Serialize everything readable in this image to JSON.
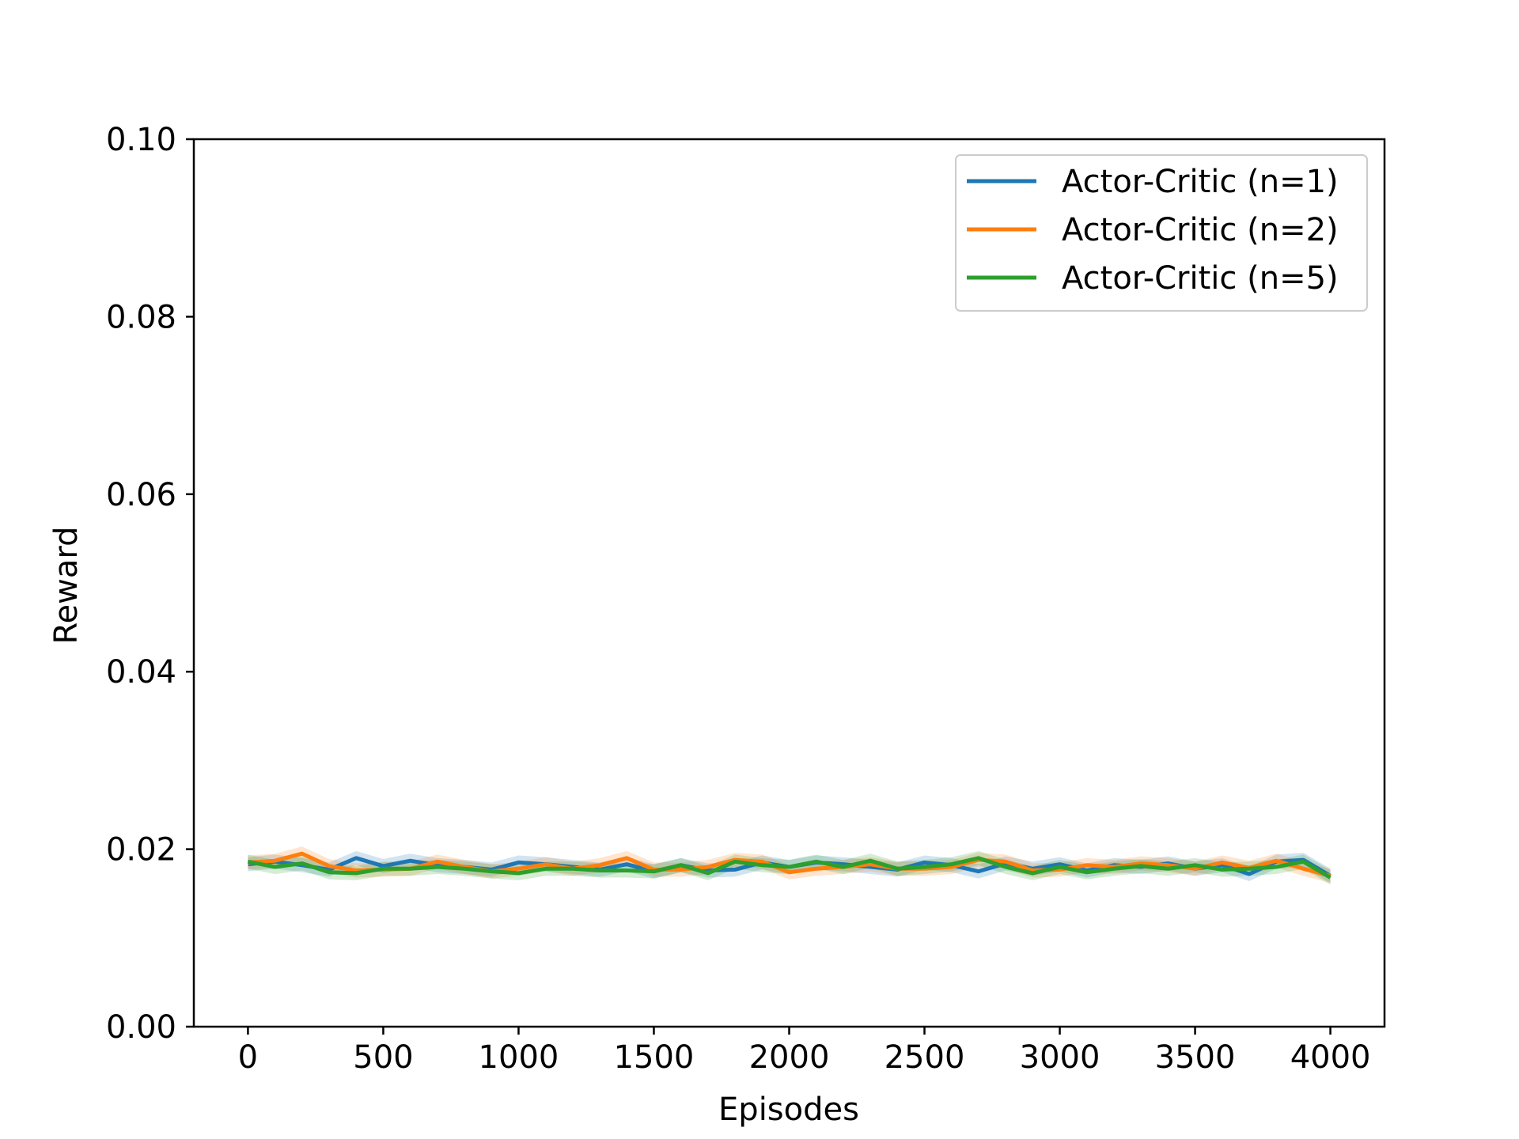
{
  "chart_data": {
    "type": "line",
    "title": "",
    "xlabel": "Episodes",
    "ylabel": "Reward",
    "xlim": [
      -200,
      4200
    ],
    "ylim": [
      0.0,
      0.1
    ],
    "xticks": [
      0,
      500,
      1000,
      1500,
      2000,
      2500,
      3000,
      3500,
      4000
    ],
    "xtick_labels": [
      "0",
      "500",
      "1000",
      "1500",
      "2000",
      "2500",
      "3000",
      "3500",
      "4000"
    ],
    "yticks": [
      0.0,
      0.02,
      0.04,
      0.06,
      0.08,
      0.1
    ],
    "ytick_labels": [
      "0.00",
      "0.02",
      "0.04",
      "0.06",
      "0.08",
      "0.10"
    ],
    "grid": false,
    "legend_position": "top-right",
    "x": [
      0,
      100,
      200,
      300,
      400,
      500,
      600,
      700,
      800,
      900,
      1000,
      1100,
      1200,
      1300,
      1400,
      1500,
      1600,
      1700,
      1800,
      1900,
      2000,
      2100,
      2200,
      2300,
      2400,
      2500,
      2600,
      2700,
      2800,
      2900,
      3000,
      3100,
      3200,
      3300,
      3400,
      3500,
      3600,
      3700,
      3800,
      3900,
      4000
    ],
    "series": [
      {
        "name": "Actor-Critic (n=1)",
        "color": "#1f77b4",
        "values": [
          0.0183,
          0.0186,
          0.0182,
          0.0177,
          0.019,
          0.0181,
          0.0187,
          0.0182,
          0.018,
          0.0177,
          0.0185,
          0.0183,
          0.018,
          0.0177,
          0.0183,
          0.0175,
          0.0182,
          0.0176,
          0.0177,
          0.0185,
          0.018,
          0.0185,
          0.0183,
          0.018,
          0.0177,
          0.0185,
          0.0182,
          0.0175,
          0.0184,
          0.0178,
          0.0183,
          0.0176,
          0.0182,
          0.018,
          0.0184,
          0.0178,
          0.0182,
          0.0172,
          0.0186,
          0.0188,
          0.017
        ]
      },
      {
        "name": "Actor-Critic (n=2)",
        "color": "#ff7f0e",
        "values": [
          0.0185,
          0.0187,
          0.0195,
          0.0181,
          0.0176,
          0.0177,
          0.0178,
          0.0186,
          0.018,
          0.0175,
          0.0178,
          0.0183,
          0.0178,
          0.0182,
          0.019,
          0.0177,
          0.0177,
          0.018,
          0.0188,
          0.0186,
          0.0174,
          0.0178,
          0.018,
          0.0183,
          0.0178,
          0.0178,
          0.018,
          0.0188,
          0.0186,
          0.0176,
          0.0177,
          0.0182,
          0.018,
          0.0184,
          0.0182,
          0.0178,
          0.0185,
          0.0179,
          0.0187,
          0.0178,
          0.017
        ]
      },
      {
        "name": "Actor-Critic (n=5)",
        "color": "#2ca02c",
        "values": [
          0.0186,
          0.018,
          0.0184,
          0.0174,
          0.0173,
          0.0178,
          0.0178,
          0.018,
          0.0178,
          0.0175,
          0.0173,
          0.0178,
          0.0178,
          0.0176,
          0.0176,
          0.0175,
          0.0182,
          0.0173,
          0.0186,
          0.0182,
          0.018,
          0.0186,
          0.018,
          0.0187,
          0.0178,
          0.018,
          0.0183,
          0.019,
          0.018,
          0.0173,
          0.018,
          0.0174,
          0.0178,
          0.0181,
          0.0178,
          0.0182,
          0.0177,
          0.0178,
          0.018,
          0.0186,
          0.0168
        ]
      }
    ]
  }
}
